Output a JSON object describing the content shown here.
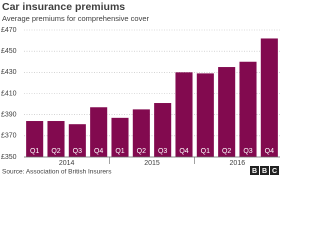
{
  "chart_data": {
    "type": "bar",
    "title": "Car insurance premiums",
    "subtitle": "Average premiums for comprehensive cover",
    "categories": [
      "Q1",
      "Q2",
      "Q3",
      "Q4",
      "Q1",
      "Q2",
      "Q3",
      "Q4",
      "Q1",
      "Q2",
      "Q3",
      "Q4"
    ],
    "groups": [
      "2014",
      "2015",
      "2016"
    ],
    "values": [
      384,
      384,
      381,
      397,
      387,
      395,
      401,
      430,
      429,
      435,
      440,
      462
    ],
    "color": "#820a4f",
    "ylim": [
      350,
      470
    ],
    "yticks": [
      {
        "value": 350,
        "label": "£350"
      },
      {
        "value": 370,
        "label": "£370"
      },
      {
        "value": 390,
        "label": "£390"
      },
      {
        "value": 410,
        "label": "£410"
      },
      {
        "value": 430,
        "label": "£430"
      },
      {
        "value": 450,
        "label": "£450"
      },
      {
        "value": 470,
        "label": "£470"
      }
    ],
    "grid": true,
    "source": "Source: Association of British Insurers",
    "logo": [
      "B",
      "B",
      "C"
    ]
  }
}
